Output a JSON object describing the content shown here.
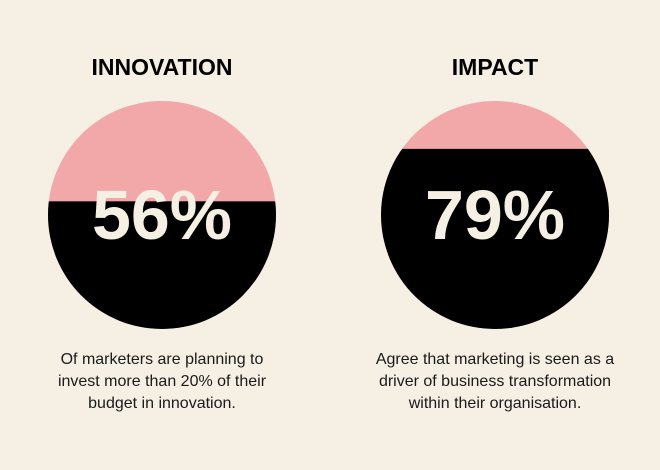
{
  "chart_data": [
    {
      "type": "fill",
      "title": "INNOVATION",
      "values": [
        56
      ],
      "value_labels": [
        "56%"
      ],
      "ylim": [
        0,
        100
      ],
      "color": "#000000",
      "background_color": "#f2a7a8",
      "description": [
        "Of marketers are planning to",
        "invest more than 20% of their",
        "budget in innovation."
      ]
    },
    {
      "type": "fill",
      "title": "IMPACT",
      "values": [
        79
      ],
      "value_labels": [
        "79%"
      ],
      "ylim": [
        0,
        100
      ],
      "color": "#000000",
      "background_color": "#f2a7a8",
      "description": [
        "Agree that marketing is seen as a",
        "driver of business transformation",
        "within their organisation."
      ]
    }
  ]
}
